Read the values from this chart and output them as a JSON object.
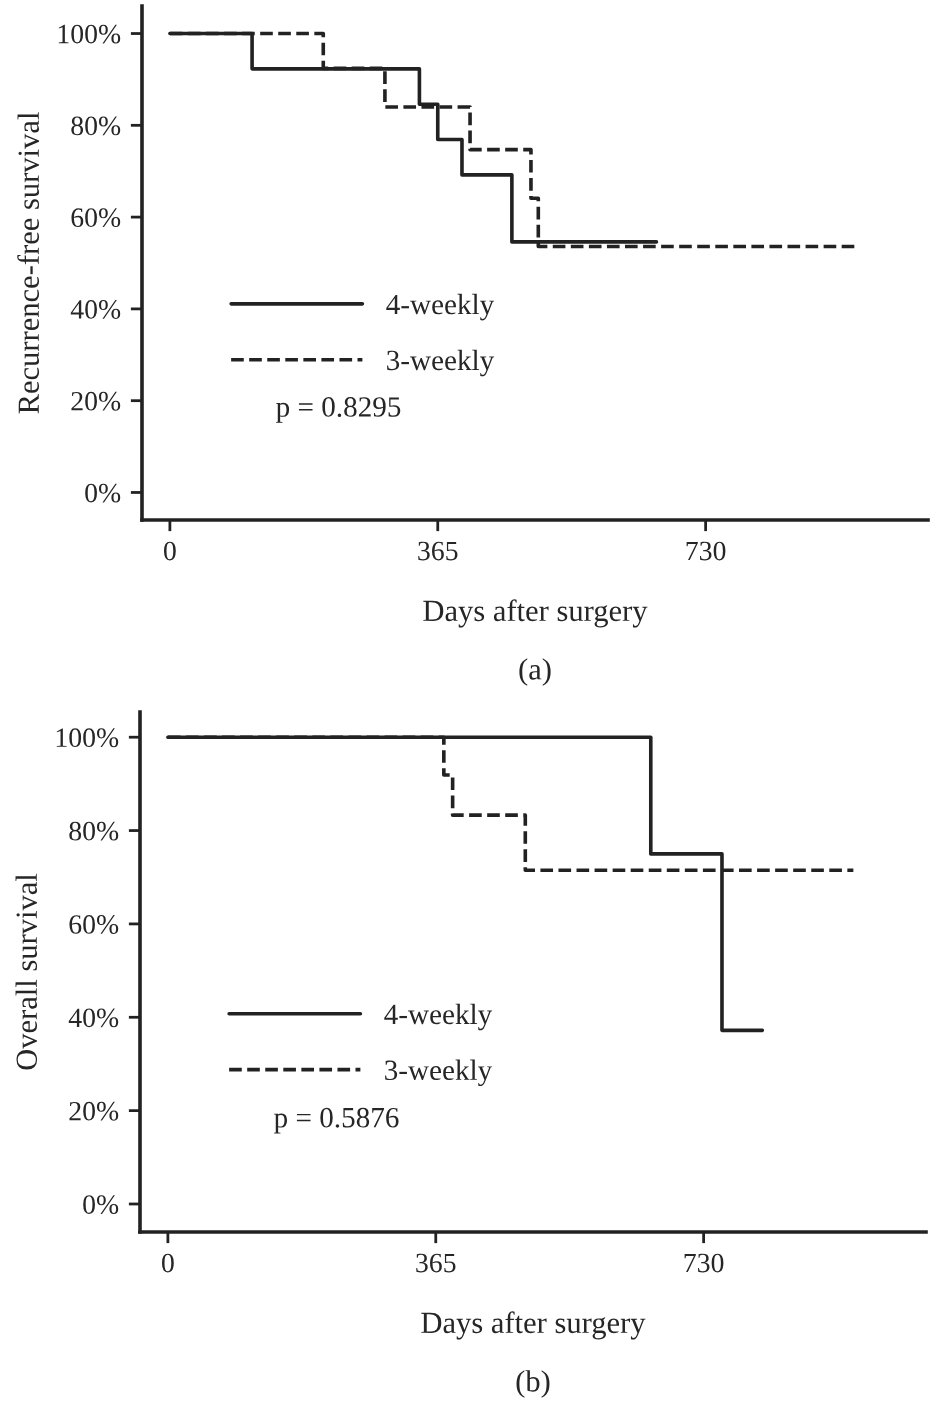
{
  "chart_data": [
    {
      "type": "step",
      "xlabel": "Days after surgery",
      "ylabel": "Recurrence-free survival",
      "xlim": [
        -38,
        1033
      ],
      "xticks": [
        0,
        365,
        730
      ],
      "ylim": [
        -6,
        106
      ],
      "yticks": [
        {
          "value": 0,
          "label": "0%"
        },
        {
          "value": 20,
          "label": "20%"
        },
        {
          "value": 40,
          "label": "40%"
        },
        {
          "value": 60,
          "label": "60%"
        },
        {
          "value": 80,
          "label": "80%"
        },
        {
          "value": 100,
          "label": "100%"
        }
      ],
      "grid": false,
      "legend": "left",
      "series": [
        {
          "name": "4-weekly",
          "color": "#222222",
          "line_style": "solid",
          "x": [
            0,
            112,
            340,
            365,
            398,
            466,
            663
          ],
          "values": [
            100,
            92.3,
            84.6,
            76.9,
            69.2,
            54.6,
            54.6
          ]
        },
        {
          "name": "3-weekly",
          "color": "#222222",
          "line_style": "dashed",
          "x": [
            0,
            209,
            293,
            409,
            492,
            502,
            933
          ],
          "values": [
            100,
            92.4,
            84.0,
            74.7,
            64.1,
            53.6,
            53.6
          ]
        }
      ],
      "annotations": [
        "p = 0.8295",
        "(a)"
      ]
    },
    {
      "type": "step",
      "xlabel": "Days after surgery",
      "ylabel": "Overall survival",
      "xlim": [
        -38,
        1033
      ],
      "xticks": [
        0,
        365,
        730
      ],
      "ylim": [
        -6,
        105.4
      ],
      "yticks": [
        {
          "value": 0,
          "label": "0%"
        },
        {
          "value": 20,
          "label": "20%"
        },
        {
          "value": 40,
          "label": "40%"
        },
        {
          "value": 60,
          "label": "60%"
        },
        {
          "value": 80,
          "label": "80%"
        },
        {
          "value": 100,
          "label": "100%"
        }
      ],
      "grid": false,
      "legend": "left",
      "series": [
        {
          "name": "4-weekly",
          "color": "#222222",
          "line_style": "solid",
          "x": [
            0,
            658,
            755,
            810
          ],
          "values": [
            100,
            75.0,
            37.2,
            37.2
          ]
        },
        {
          "name": "3-weekly",
          "color": "#222222",
          "line_style": "dashed",
          "x": [
            0,
            376,
            388,
            487,
            934
          ],
          "values": [
            100,
            91.9,
            83.3,
            71.5,
            71.5
          ]
        }
      ],
      "annotations": [
        "p = 0.5876",
        "(b)"
      ]
    }
  ]
}
